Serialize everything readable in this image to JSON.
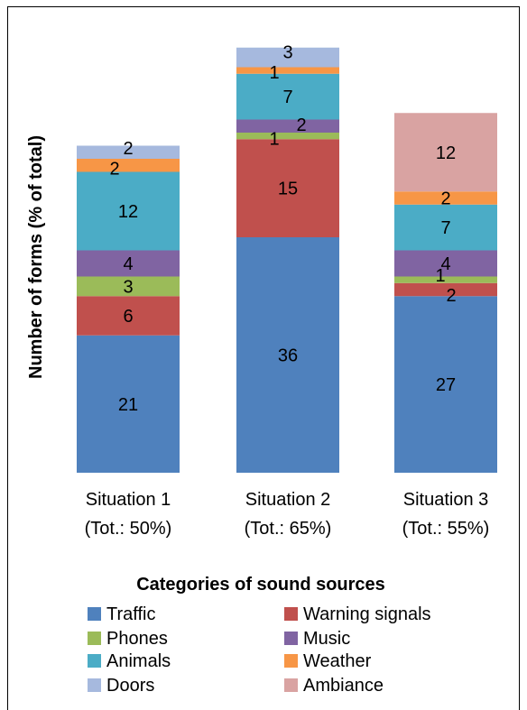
{
  "chart_data": {
    "type": "bar",
    "stacked": true,
    "categories": [
      [
        "Situation 1",
        "(Tot.: 50%)"
      ],
      [
        "Situation 2",
        "(Tot.: 65%)"
      ],
      [
        "Situation 3",
        "(Tot.: 55%)"
      ]
    ],
    "series": [
      {
        "name": "Traffic",
        "color": "#4f81bd",
        "values": [
          21,
          36,
          27
        ]
      },
      {
        "name": "Warning signals",
        "color": "#c0504d",
        "values": [
          6,
          15,
          2
        ]
      },
      {
        "name": "Phones",
        "color": "#9bbb59",
        "values": [
          3,
          1,
          1
        ]
      },
      {
        "name": "Music",
        "color": "#8064a2",
        "values": [
          4,
          2,
          4
        ]
      },
      {
        "name": "Animals",
        "color": "#4bacc6",
        "values": [
          12,
          7,
          7
        ]
      },
      {
        "name": "Weather",
        "color": "#f79646",
        "values": [
          2,
          1,
          2
        ]
      },
      {
        "name": "Doors",
        "color": "#a6b9de",
        "values": [
          2,
          3,
          0
        ]
      },
      {
        "name": "Ambiance",
        "color": "#d9a3a2",
        "values": [
          0,
          0,
          12
        ]
      }
    ],
    "xlabel": "Categories of sound sources",
    "ylabel": "Number of forms (% of total)",
    "ylim": [
      0,
      66
    ],
    "grid": false,
    "legend": "bottom"
  }
}
